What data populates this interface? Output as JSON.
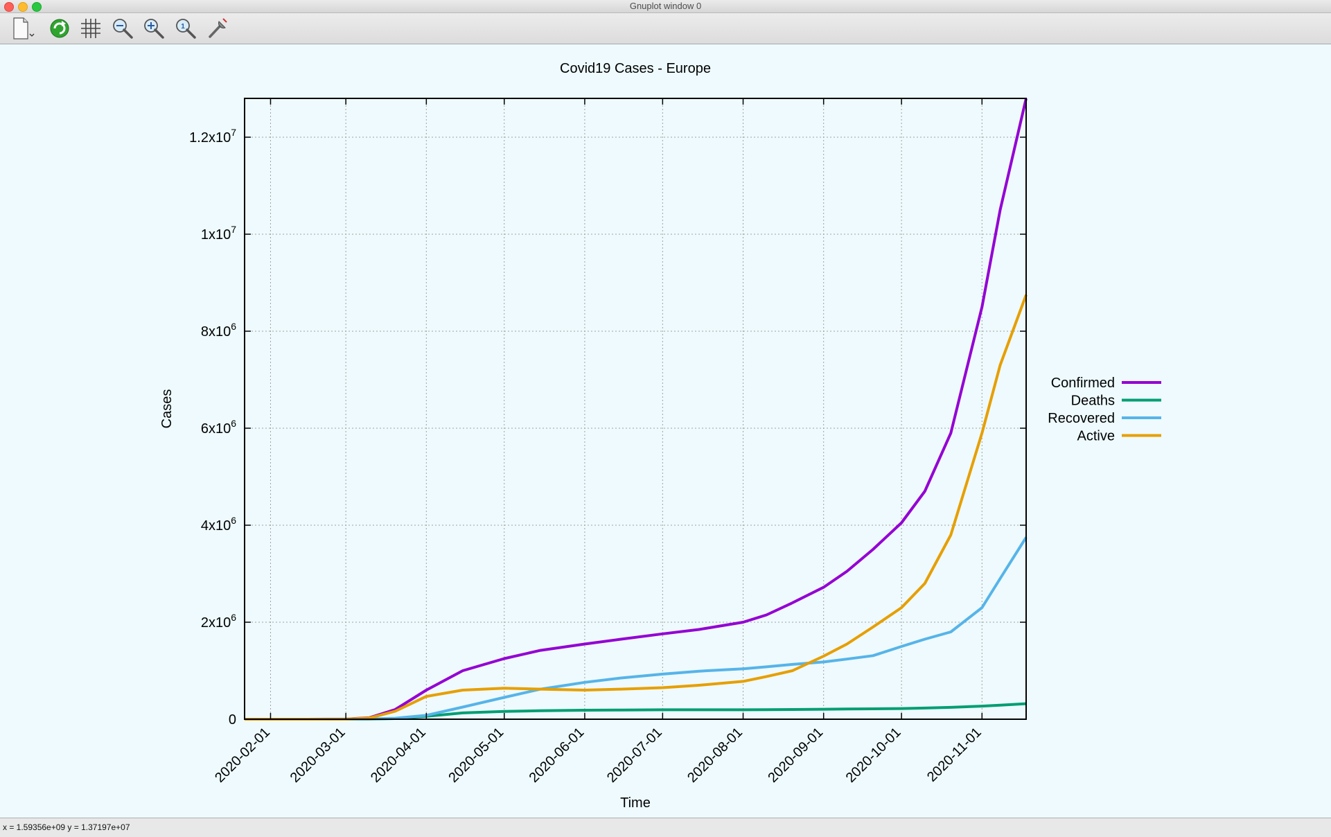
{
  "window": {
    "title": "Gnuplot window 0"
  },
  "toolbar": {
    "buttons": [
      {
        "name": "export",
        "icon": "document-export-icon"
      },
      {
        "name": "replot",
        "icon": "refresh-icon"
      },
      {
        "name": "grid",
        "icon": "grid-icon"
      },
      {
        "name": "zoom-out",
        "icon": "zoom-out-icon"
      },
      {
        "name": "zoom-in",
        "icon": "zoom-in-icon"
      },
      {
        "name": "zoom-reset",
        "icon": "zoom-reset-icon"
      },
      {
        "name": "settings",
        "icon": "wrench-icon"
      }
    ]
  },
  "status": {
    "coords": "x = 1.59356e+09 y = 1.37197e+07"
  },
  "chart_data": {
    "type": "line",
    "title": "Covid19 Cases - Europe",
    "xlabel": "Time",
    "ylabel": "Cases",
    "x_range": [
      "2020-01-22",
      "2020-11-18"
    ],
    "ylim": [
      0,
      12800000
    ],
    "x_ticks": [
      "2020-02-01",
      "2020-03-01",
      "2020-04-01",
      "2020-05-01",
      "2020-06-01",
      "2020-07-01",
      "2020-08-01",
      "2020-09-01",
      "2020-10-01",
      "2020-11-01"
    ],
    "y_ticks": [
      {
        "value": 0,
        "label": "0",
        "exp": ""
      },
      {
        "value": 2000000,
        "label": "2x10",
        "exp": "6"
      },
      {
        "value": 4000000,
        "label": "4x10",
        "exp": "6"
      },
      {
        "value": 6000000,
        "label": "6x10",
        "exp": "6"
      },
      {
        "value": 8000000,
        "label": "8x10",
        "exp": "6"
      },
      {
        "value": 10000000,
        "label": "1x10",
        "exp": "7"
      },
      {
        "value": 12000000,
        "label": "1.2x10",
        "exp": "7"
      }
    ],
    "grid": true,
    "legend_position": "right",
    "colors": {
      "Confirmed": "#9400d3",
      "Deaths": "#009e73",
      "Recovered": "#56b4e9",
      "Active": "#e69f00"
    },
    "x": [
      "2020-01-22",
      "2020-02-15",
      "2020-03-01",
      "2020-03-10",
      "2020-03-20",
      "2020-04-01",
      "2020-04-15",
      "2020-05-01",
      "2020-05-15",
      "2020-06-01",
      "2020-06-15",
      "2020-07-01",
      "2020-07-15",
      "2020-08-01",
      "2020-08-10",
      "2020-08-20",
      "2020-09-01",
      "2020-09-10",
      "2020-09-20",
      "2020-10-01",
      "2020-10-10",
      "2020-10-20",
      "2020-11-01",
      "2020-11-08",
      "2020-11-18"
    ],
    "series": [
      {
        "name": "Confirmed",
        "values": [
          0,
          0,
          3000,
          30000,
          200000,
          600000,
          1000000,
          1250000,
          1420000,
          1550000,
          1650000,
          1760000,
          1850000,
          2000000,
          2150000,
          2400000,
          2720000,
          3050000,
          3500000,
          4050000,
          4700000,
          5900000,
          8500000,
          10500000,
          12800000
        ]
      },
      {
        "name": "Deaths",
        "values": [
          0,
          0,
          100,
          1000,
          15000,
          60000,
          130000,
          160000,
          175000,
          185000,
          190000,
          195000,
          195000,
          195000,
          197000,
          200000,
          205000,
          210000,
          215000,
          220000,
          230000,
          245000,
          270000,
          290000,
          320000
        ]
      },
      {
        "name": "Recovered",
        "values": [
          0,
          0,
          800,
          5000,
          20000,
          80000,
          250000,
          450000,
          620000,
          760000,
          850000,
          930000,
          990000,
          1040000,
          1080000,
          1130000,
          1180000,
          1240000,
          1310000,
          1500000,
          1650000,
          1800000,
          2300000,
          2900000,
          3750000
        ]
      },
      {
        "name": "Active",
        "values": [
          0,
          0,
          2100,
          25000,
          165000,
          470000,
          600000,
          640000,
          620000,
          600000,
          620000,
          650000,
          700000,
          780000,
          880000,
          1000000,
          1300000,
          1550000,
          1900000,
          2300000,
          2800000,
          3800000,
          5900000,
          7300000,
          8750000
        ]
      }
    ]
  }
}
